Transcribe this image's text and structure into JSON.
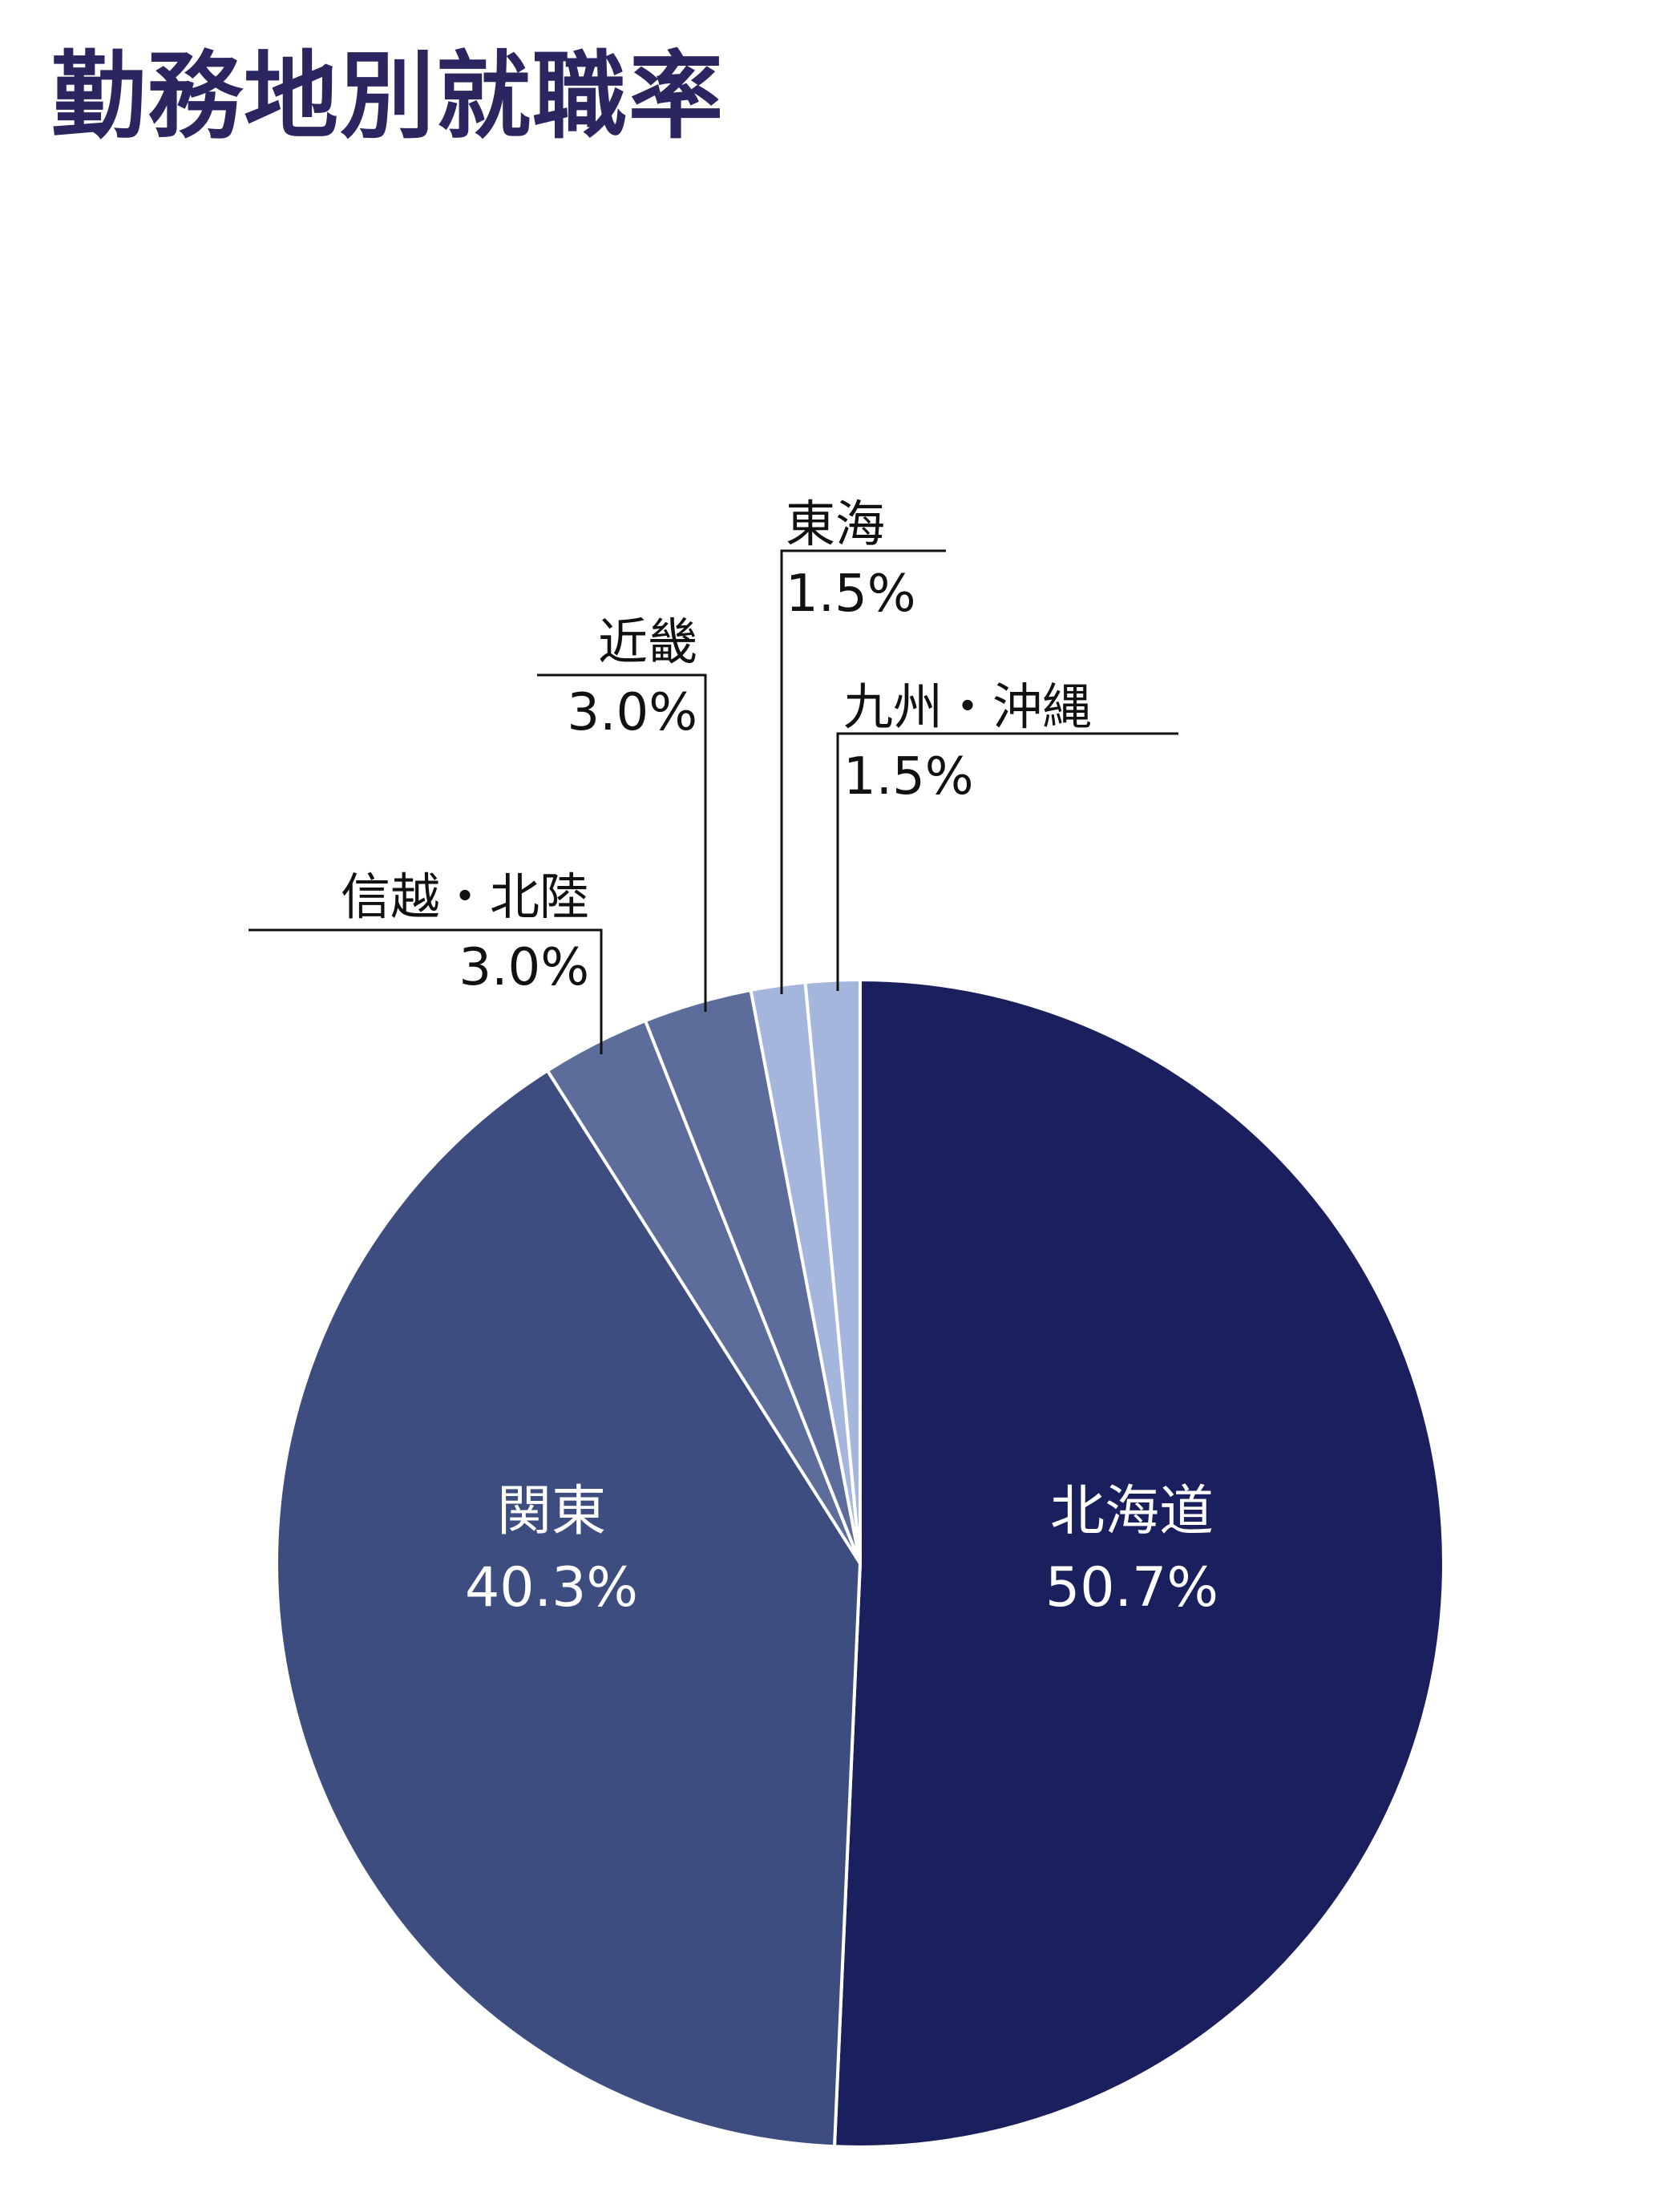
{
  "colors": {
    "title": "#2b2660",
    "label_dark": "#111111",
    "label_light": "#ffffff",
    "slice_border": "#ffffff",
    "leader_line": "#111111"
  },
  "chart_data": {
    "type": "pie",
    "title": "勤務地別就職率",
    "start": "12 o'clock",
    "direction": "clockwise",
    "slices": [
      {
        "label": "北海道",
        "value": 50.7,
        "value_label": "50.7%",
        "color": "#1a1f5e",
        "label_placement": "inside"
      },
      {
        "label": "関東",
        "value": 40.3,
        "value_label": "40.3%",
        "color": "#3e4d80",
        "label_placement": "inside"
      },
      {
        "label": "信越・北陸",
        "value": 3.0,
        "value_label": "3.0%",
        "color": "#5d6d9b",
        "label_placement": "outside"
      },
      {
        "label": "近畿",
        "value": 3.0,
        "value_label": "3.0%",
        "color": "#5d6d9b",
        "label_placement": "outside"
      },
      {
        "label": "東海",
        "value": 1.5,
        "value_label": "1.5%",
        "color": "#a5b6dd",
        "label_placement": "outside"
      },
      {
        "label": "九州・沖縄",
        "value": 1.5,
        "value_label": "1.5%",
        "color": "#a5b6dd",
        "label_placement": "outside"
      }
    ]
  }
}
